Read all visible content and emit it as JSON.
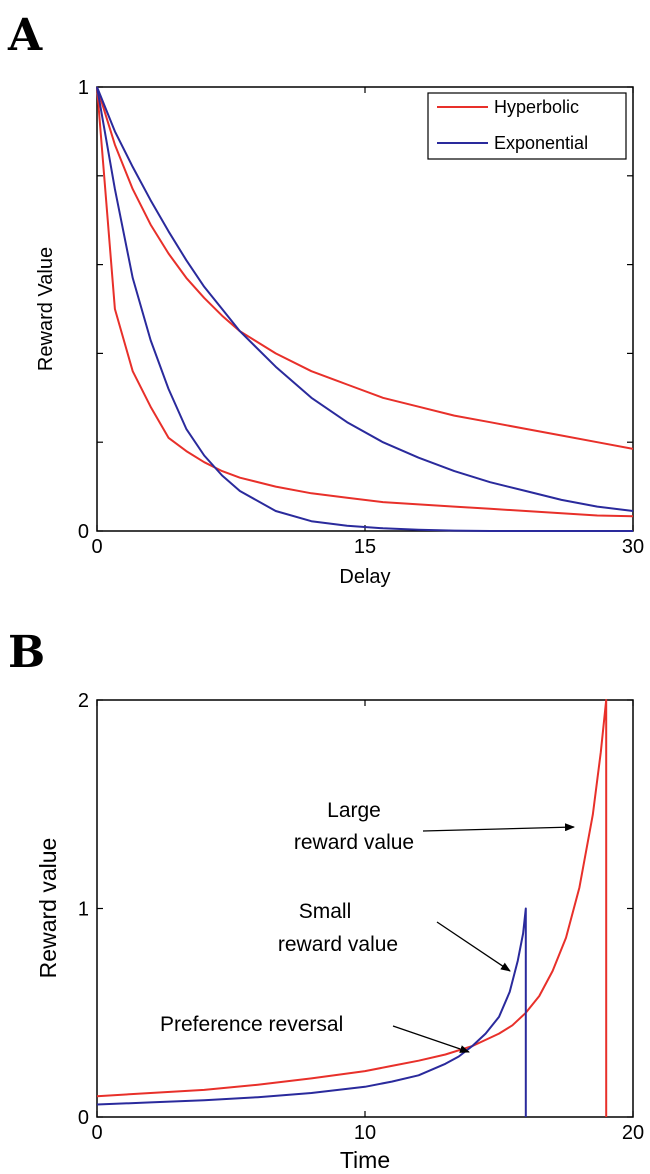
{
  "chart_data": [
    {
      "panel": "A",
      "type": "line",
      "xlabel": "Delay",
      "ylabel": "Reward Value",
      "xlim": [
        0,
        30
      ],
      "ylim": [
        0,
        1
      ],
      "xticks": [
        "0",
        "15",
        "30"
      ],
      "yticks": [
        "0",
        "1"
      ],
      "legend_position": "top-right",
      "legend": [
        {
          "label": "Hyperbolic",
          "color": "#e8302a"
        },
        {
          "label": "Exponential",
          "color": "#2a2a9c"
        }
      ],
      "series": [
        {
          "legend": "Hyperbolic",
          "color": "#e8302a",
          "points": [
            [
              0,
              1
            ],
            [
              1,
              0.87
            ],
            [
              2,
              0.77
            ],
            [
              3,
              0.69
            ],
            [
              4,
              0.625
            ],
            [
              5,
              0.57
            ],
            [
              6,
              0.525
            ],
            [
              7,
              0.485
            ],
            [
              8,
              0.45
            ],
            [
              10,
              0.4
            ],
            [
              12,
              0.36
            ],
            [
              14,
              0.33
            ],
            [
              16,
              0.3
            ],
            [
              18,
              0.28
            ],
            [
              20,
              0.26
            ],
            [
              22,
              0.245
            ],
            [
              24,
              0.23
            ],
            [
              26,
              0.215
            ],
            [
              28,
              0.2
            ],
            [
              30,
              0.185
            ]
          ]
        },
        {
          "legend": "Hyperbolic",
          "color": "#e8302a",
          "points": [
            [
              0,
              1
            ],
            [
              1,
              0.5
            ],
            [
              2,
              0.36
            ],
            [
              3,
              0.28
            ],
            [
              4,
              0.21
            ],
            [
              5,
              0.18
            ],
            [
              6,
              0.155
            ],
            [
              7,
              0.135
            ],
            [
              8,
              0.12
            ],
            [
              10,
              0.1
            ],
            [
              12,
              0.085
            ],
            [
              14,
              0.075
            ],
            [
              16,
              0.065
            ],
            [
              18,
              0.06
            ],
            [
              20,
              0.055
            ],
            [
              22,
              0.05
            ],
            [
              24,
              0.045
            ],
            [
              26,
              0.04
            ],
            [
              28,
              0.035
            ],
            [
              30,
              0.033
            ]
          ]
        },
        {
          "legend": "Exponential",
          "color": "#2a2a9c",
          "points": [
            [
              0,
              1
            ],
            [
              1,
              0.9
            ],
            [
              2,
              0.82
            ],
            [
              3,
              0.745
            ],
            [
              4,
              0.675
            ],
            [
              5,
              0.61
            ],
            [
              6,
              0.55
            ],
            [
              7,
              0.5
            ],
            [
              8,
              0.45
            ],
            [
              10,
              0.37
            ],
            [
              12,
              0.3
            ],
            [
              14,
              0.245
            ],
            [
              16,
              0.2
            ],
            [
              18,
              0.165
            ],
            [
              20,
              0.135
            ],
            [
              22,
              0.11
            ],
            [
              24,
              0.09
            ],
            [
              26,
              0.07
            ],
            [
              28,
              0.055
            ],
            [
              30,
              0.045
            ]
          ]
        },
        {
          "legend": "Exponential",
          "color": "#2a2a9c",
          "points": [
            [
              0,
              1
            ],
            [
              1,
              0.77
            ],
            [
              2,
              0.57
            ],
            [
              3,
              0.43
            ],
            [
              4,
              0.32
            ],
            [
              5,
              0.23
            ],
            [
              6,
              0.17
            ],
            [
              7,
              0.125
            ],
            [
              8,
              0.09
            ],
            [
              10,
              0.045
            ],
            [
              12,
              0.022
            ],
            [
              14,
              0.012
            ],
            [
              16,
              0.006
            ],
            [
              18,
              0.003
            ],
            [
              20,
              0.001
            ],
            [
              22,
              0
            ],
            [
              26,
              0
            ],
            [
              30,
              0
            ]
          ]
        }
      ]
    },
    {
      "panel": "B",
      "type": "line",
      "xlabel": "Time",
      "ylabel": "Reward value",
      "xlim": [
        0,
        20
      ],
      "ylim": [
        0,
        2
      ],
      "xticks": [
        "0",
        "10",
        "20"
      ],
      "yticks": [
        "0",
        "1",
        "2"
      ],
      "series": [
        {
          "color": "#e8302a",
          "points": [
            [
              0,
              0.1
            ],
            [
              2,
              0.115
            ],
            [
              4,
              0.13
            ],
            [
              6,
              0.155
            ],
            [
              8,
              0.185
            ],
            [
              10,
              0.22
            ],
            [
              11,
              0.245
            ],
            [
              12,
              0.27
            ],
            [
              13,
              0.3
            ],
            [
              14,
              0.34
            ],
            [
              15,
              0.4
            ],
            [
              15.5,
              0.44
            ],
            [
              16,
              0.5
            ],
            [
              16.5,
              0.58
            ],
            [
              17,
              0.7
            ],
            [
              17.5,
              0.86
            ],
            [
              18,
              1.1
            ],
            [
              18.5,
              1.45
            ],
            [
              18.8,
              1.75
            ],
            [
              19,
              2
            ],
            [
              19,
              0
            ]
          ]
        },
        {
          "color": "#2a2a9c",
          "points": [
            [
              0,
              0.06
            ],
            [
              2,
              0.07
            ],
            [
              4,
              0.08
            ],
            [
              6,
              0.095
            ],
            [
              8,
              0.115
            ],
            [
              10,
              0.145
            ],
            [
              11,
              0.17
            ],
            [
              12,
              0.2
            ],
            [
              13,
              0.255
            ],
            [
              13.5,
              0.29
            ],
            [
              14,
              0.34
            ],
            [
              14.5,
              0.4
            ],
            [
              15,
              0.48
            ],
            [
              15.4,
              0.6
            ],
            [
              15.7,
              0.75
            ],
            [
              15.9,
              0.88
            ],
            [
              16,
              1
            ],
            [
              16,
              0
            ]
          ]
        }
      ],
      "annotations": [
        {
          "lines": [
            "Large",
            "reward value"
          ]
        },
        {
          "lines": [
            "Small",
            "reward value"
          ]
        },
        {
          "lines": [
            "Preference reversal"
          ]
        }
      ]
    }
  ],
  "panels": {
    "a": {
      "letter": "A"
    },
    "b": {
      "letter": "B"
    }
  }
}
